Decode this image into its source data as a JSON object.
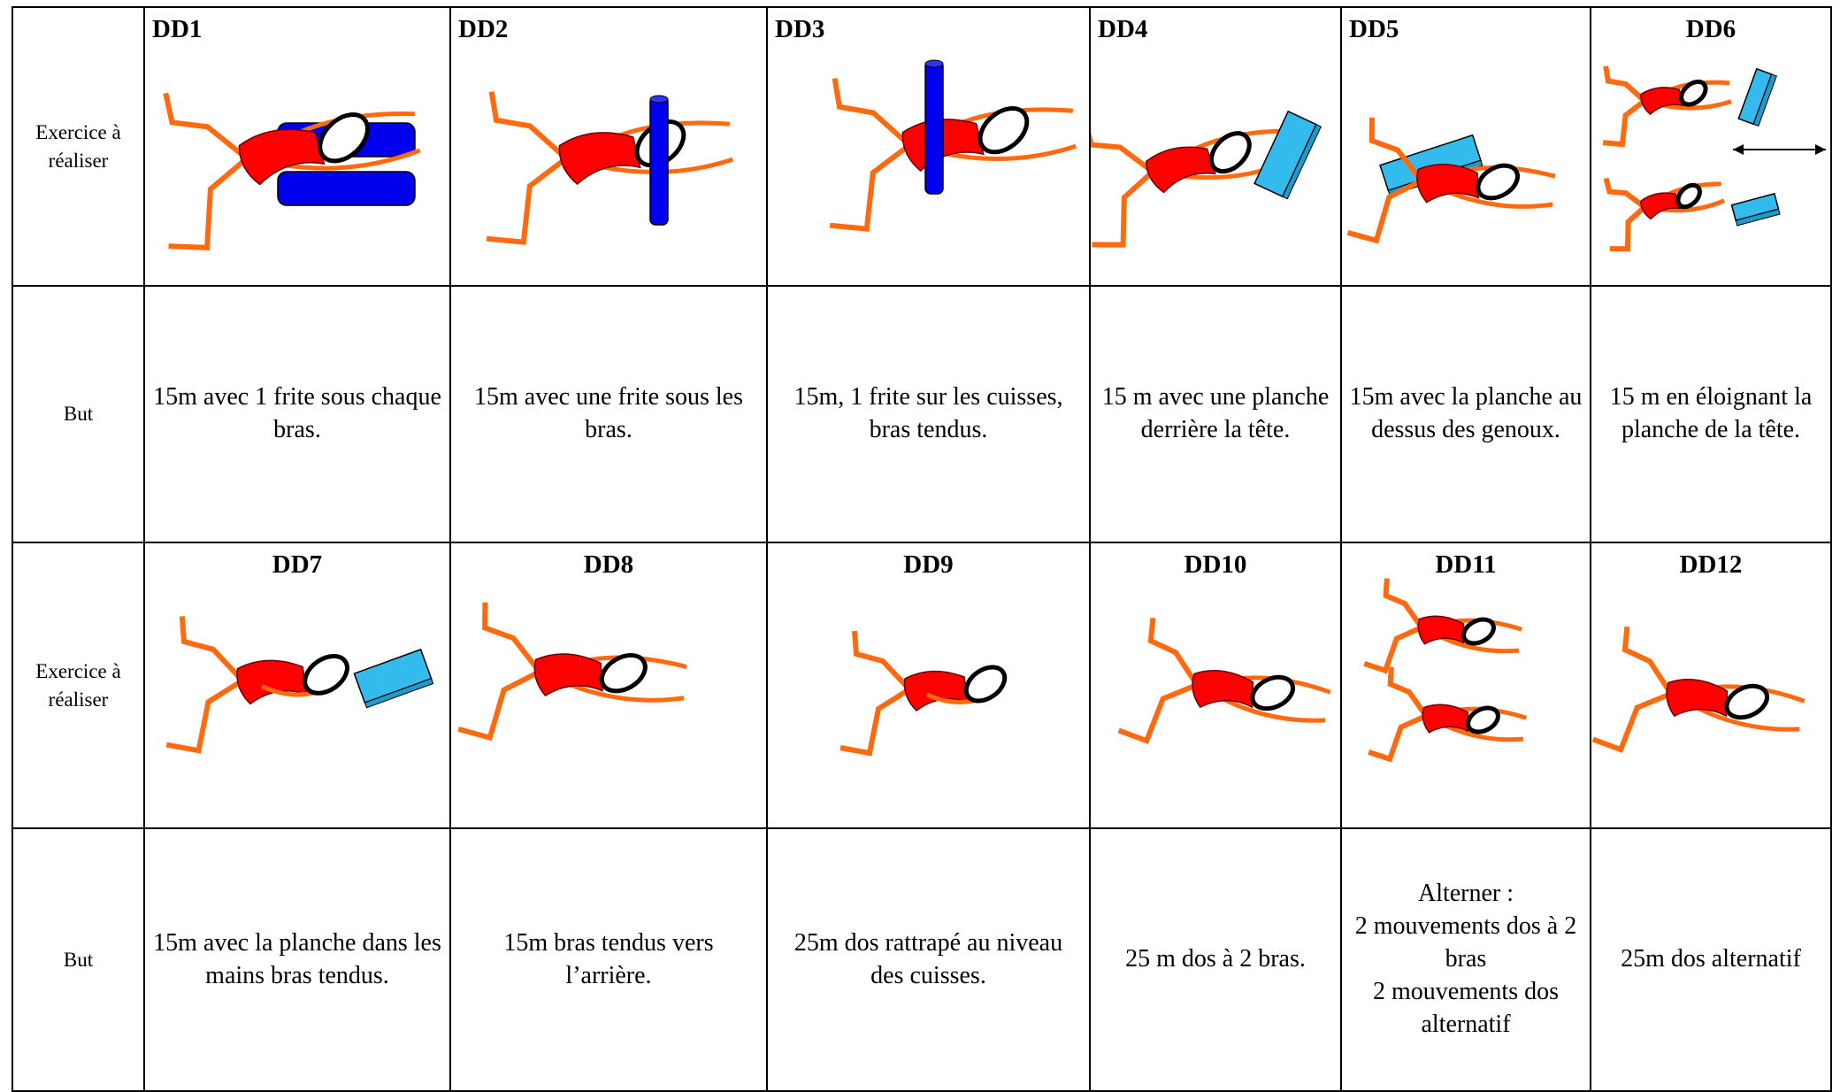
{
  "blocks": [
    {
      "exercise_label": "Exercice à réaliser",
      "titles": [
        "DD1",
        "DD2",
        "DD3",
        "DD4",
        "DD5",
        "DD6"
      ],
      "goal_label": "But",
      "goals": [
        "15m avec 1 frite sous chaque bras.",
        "15m avec une frite sous les bras.",
        "15m, 1 frite sur les cuisses, bras tendus.",
        "15 m avec une planche derrière la tête.",
        "15m avec la planche au dessus des genoux.",
        "15 m en éloignant la planche de la tête."
      ]
    },
    {
      "exercise_label": "Exercice à réaliser",
      "titles": [
        "DD7",
        "DD8",
        "DD9",
        "DD10",
        "DD11",
        "DD12"
      ],
      "goal_label": "But",
      "goals": [
        "15m avec la planche dans les mains bras tendus.",
        "15m bras tendus vers l’arrière.",
        "25m dos rattrapé au niveau des cuisses.",
        "25 m dos à 2 bras.",
        "Alterner :\n2 mouvements dos à 2 bras\n2 mouvements dos alternatif",
        "25m dos alternatif"
      ]
    }
  ]
}
